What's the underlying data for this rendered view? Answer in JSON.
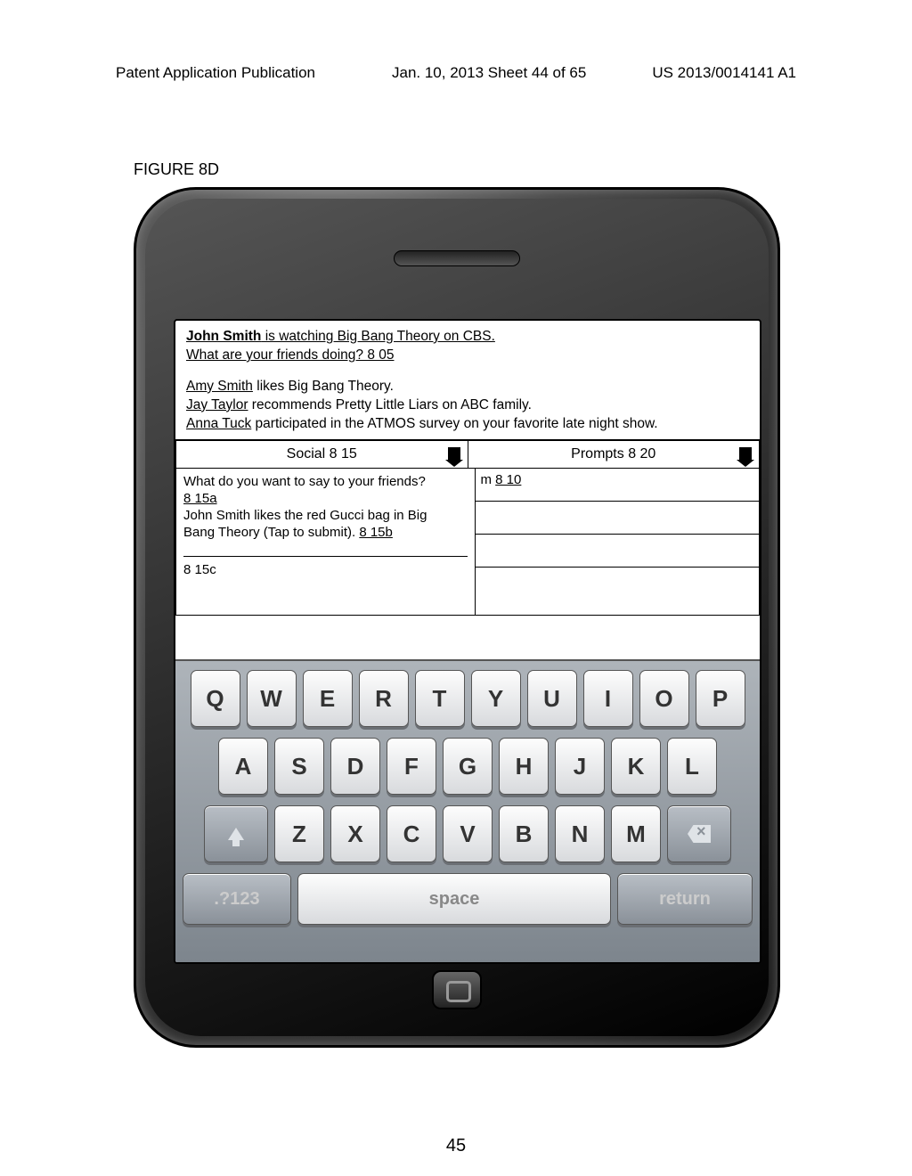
{
  "header": {
    "left": "Patent Application Publication",
    "center": "Jan. 10, 2013  Sheet 44 of 65",
    "right": "US 2013/0014141 A1"
  },
  "figure_label": "FIGURE 8D",
  "feed": {
    "line1_name": "John Smith",
    "line1_rest": " is watching Big Bang Theory on CBS.",
    "line2": "What are your friends doing?  8 05",
    "line3_name": "Amy Smith",
    "line3_rest": " likes Big Bang Theory.",
    "line4_name": "Jay Taylor",
    "line4_rest": " recommends Pretty Little Liars on ABC family.",
    "line5_name": "Anna Tuck",
    "line5_rest": " participated in the ATMOS  survey on your favorite late night show."
  },
  "tabs": {
    "social": "Social 8 15",
    "prompts": "Prompts 8 20"
  },
  "social_panel": {
    "q": "What do you want to say to your friends?",
    "ref_a": "8 15a",
    "line2a": "John Smith likes the red Gucci bag in Big",
    "line2b": "Bang Theory (Tap to submit).  ",
    "ref_b": "8 15b",
    "ref_c": "8 15c"
  },
  "prompts_panel": {
    "cell1_prefix": "m ",
    "cell1_ref": "8 10"
  },
  "keyboard": {
    "row1": [
      "Q",
      "W",
      "E",
      "R",
      "T",
      "Y",
      "U",
      "I",
      "O",
      "P"
    ],
    "row2": [
      "A",
      "S",
      "D",
      "F",
      "G",
      "H",
      "J",
      "K",
      "L"
    ],
    "row3": [
      "Z",
      "X",
      "C",
      "V",
      "B",
      "N",
      "M"
    ],
    "num": ".?123",
    "space": "space",
    "ret": "return"
  },
  "page_number": "45"
}
